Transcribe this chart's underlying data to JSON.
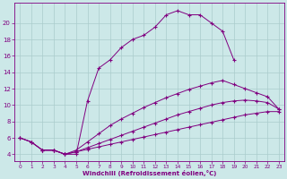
{
  "xlabel": "Windchill (Refroidissement éolien,°C)",
  "bg_color": "#cce8e8",
  "line_color": "#800080",
  "grid_color": "#aacccc",
  "xlim": [
    -0.5,
    23.5
  ],
  "ylim": [
    3.2,
    22.5
  ],
  "xticks": [
    0,
    1,
    2,
    3,
    4,
    5,
    6,
    7,
    8,
    9,
    10,
    11,
    12,
    13,
    14,
    15,
    16,
    17,
    18,
    19,
    20,
    21,
    22,
    23
  ],
  "yticks": [
    4,
    6,
    8,
    10,
    12,
    14,
    16,
    18,
    20
  ],
  "line1_x": [
    0,
    1,
    2,
    3,
    4,
    5,
    6,
    7,
    8,
    9,
    10,
    11,
    12,
    13,
    14,
    15,
    16,
    17,
    18,
    19
  ],
  "line1_y": [
    6.0,
    5.5,
    4.5,
    4.5,
    4.0,
    4.0,
    10.5,
    14.5,
    15.5,
    17.0,
    18.0,
    18.5,
    19.5,
    21.0,
    21.5,
    21.0,
    21.0,
    20.0,
    19.0,
    15.5
  ],
  "line2_x": [
    0,
    1,
    2,
    3,
    4,
    5,
    6,
    7,
    8,
    9,
    10,
    11,
    12,
    13,
    14,
    15,
    16,
    17,
    18,
    19,
    20,
    21,
    22,
    23
  ],
  "line2_y": [
    6.0,
    5.5,
    4.5,
    4.5,
    4.0,
    4.5,
    5.5,
    6.5,
    7.5,
    8.3,
    9.0,
    9.7,
    10.3,
    10.9,
    11.4,
    11.9,
    12.3,
    12.7,
    13.0,
    12.5,
    12.0,
    11.5,
    11.0,
    9.5
  ],
  "line3_x": [
    0,
    1,
    2,
    3,
    4,
    5,
    6,
    7,
    8,
    9,
    10,
    11,
    12,
    13,
    14,
    15,
    16,
    17,
    18,
    19,
    20,
    21,
    22,
    23
  ],
  "line3_y": [
    6.0,
    5.5,
    4.5,
    4.5,
    4.0,
    4.3,
    4.8,
    5.3,
    5.8,
    6.3,
    6.8,
    7.3,
    7.8,
    8.3,
    8.8,
    9.2,
    9.6,
    10.0,
    10.3,
    10.5,
    10.6,
    10.5,
    10.3,
    9.5
  ],
  "line4_x": [
    2,
    3,
    4,
    5,
    6,
    7,
    8,
    9,
    10,
    11,
    12,
    13,
    14,
    15,
    16,
    17,
    18,
    19,
    20,
    21,
    22,
    23
  ],
  "line4_y": [
    4.5,
    4.5,
    4.0,
    4.3,
    4.6,
    4.9,
    5.2,
    5.5,
    5.8,
    6.1,
    6.4,
    6.7,
    7.0,
    7.3,
    7.6,
    7.9,
    8.2,
    8.5,
    8.8,
    9.0,
    9.2,
    9.2
  ]
}
